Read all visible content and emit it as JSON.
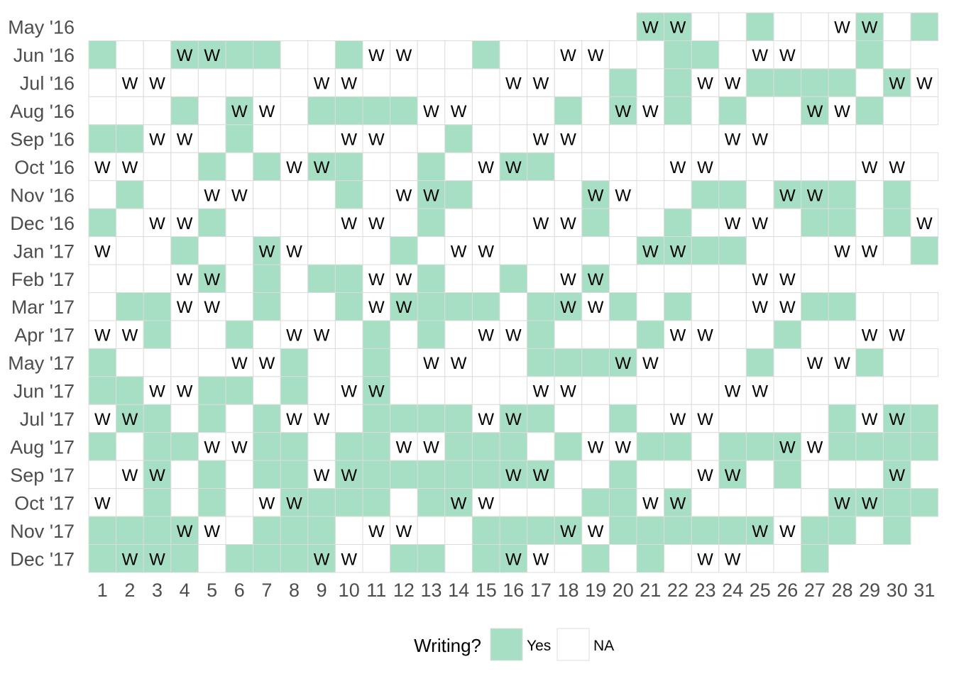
{
  "chart_data": {
    "type": "heatmap",
    "title": "",
    "xlabel": "",
    "ylabel": "",
    "months": [
      "May '16",
      "Jun '16",
      "Jul '16",
      "Aug '16",
      "Sep '16",
      "Oct '16",
      "Nov '16",
      "Dec '16",
      "Jan '17",
      "Feb '17",
      "Mar '17",
      "Apr '17",
      "May '17",
      "Jun '17",
      "Jul '17",
      "Aug '17",
      "Sep '17",
      "Oct '17",
      "Nov '17",
      "Dec '17"
    ],
    "days": [
      "1",
      "2",
      "3",
      "4",
      "5",
      "6",
      "7",
      "8",
      "9",
      "10",
      "11",
      "12",
      "13",
      "14",
      "15",
      "16",
      "17",
      "18",
      "19",
      "20",
      "21",
      "22",
      "23",
      "24",
      "25",
      "26",
      "27",
      "28",
      "29",
      "30",
      "31"
    ],
    "days_in_month": [
      31,
      30,
      31,
      31,
      30,
      31,
      30,
      31,
      31,
      28,
      31,
      30,
      31,
      30,
      31,
      31,
      30,
      31,
      30,
      31
    ],
    "first_day": [
      21,
      1,
      1,
      1,
      1,
      1,
      1,
      1,
      1,
      1,
      1,
      1,
      1,
      1,
      1,
      1,
      1,
      1,
      1,
      1
    ],
    "last_day": [
      31,
      30,
      31,
      31,
      30,
      31,
      30,
      31,
      31,
      28,
      31,
      30,
      31,
      30,
      31,
      31,
      30,
      31,
      30,
      27
    ],
    "writing_days": [
      [
        21,
        22,
        25,
        29,
        31
      ],
      [
        1,
        4,
        5,
        6,
        7,
        10,
        15,
        22,
        23,
        29
      ],
      [
        20,
        22,
        25,
        26,
        27,
        28,
        30
      ],
      [
        4,
        6,
        9,
        10,
        11,
        12,
        18,
        20,
        22,
        24,
        27,
        29
      ],
      [
        1,
        2,
        6,
        14
      ],
      [
        5,
        7,
        9,
        10,
        13,
        16,
        17
      ],
      [
        2,
        10,
        13,
        14,
        19,
        23,
        24,
        26,
        27,
        28,
        30
      ],
      [
        1,
        5,
        13,
        19,
        22,
        27,
        28,
        30
      ],
      [
        4,
        7,
        12,
        21,
        22,
        23,
        24,
        31
      ],
      [
        5,
        7,
        9,
        10,
        13,
        16,
        19
      ],
      [
        2,
        3,
        7,
        10,
        12,
        13,
        14,
        15,
        17,
        18,
        20,
        22,
        27,
        28
      ],
      [
        3,
        6,
        11,
        13,
        17,
        21,
        26
      ],
      [
        1,
        8,
        11,
        17,
        18,
        19,
        20,
        25,
        29
      ],
      [
        1,
        2,
        5,
        6,
        8,
        11
      ],
      [
        2,
        3,
        5,
        7,
        11,
        12,
        13,
        14,
        16,
        17,
        20,
        28,
        30,
        31
      ],
      [
        1,
        3,
        4,
        7,
        8,
        10,
        11,
        14,
        15,
        16,
        18,
        21,
        22,
        24,
        25,
        26,
        28,
        29,
        30,
        31
      ],
      [
        3,
        5,
        7,
        8,
        10,
        11,
        12,
        13,
        14,
        15,
        16,
        17,
        20,
        24,
        26,
        30
      ],
      [
        3,
        5,
        8,
        9,
        10,
        11,
        13,
        14,
        19,
        20,
        22,
        28,
        29,
        30,
        31
      ],
      [
        1,
        2,
        3,
        4,
        7,
        8,
        9,
        15,
        16,
        17,
        18,
        20,
        21,
        22,
        23,
        24,
        25,
        27,
        28,
        30
      ],
      [
        1,
        2,
        3,
        4,
        6,
        7,
        8,
        9,
        12,
        13,
        15,
        16,
        19,
        21,
        27
      ]
    ],
    "weekend_label": "W",
    "weekend_days": [
      [
        21,
        22,
        28,
        29
      ],
      [
        4,
        5,
        11,
        12,
        18,
        19,
        25,
        26
      ],
      [
        2,
        3,
        9,
        10,
        16,
        17,
        23,
        24,
        30,
        31
      ],
      [
        6,
        7,
        13,
        14,
        20,
        21,
        27,
        28
      ],
      [
        3,
        4,
        10,
        11,
        17,
        18,
        24,
        25
      ],
      [
        1,
        2,
        8,
        9,
        15,
        16,
        22,
        23,
        29,
        30
      ],
      [
        5,
        6,
        12,
        13,
        19,
        20,
        26,
        27
      ],
      [
        3,
        4,
        10,
        11,
        17,
        18,
        24,
        25,
        31
      ],
      [
        1,
        7,
        8,
        14,
        15,
        21,
        22,
        28,
        29
      ],
      [
        4,
        5,
        11,
        12,
        18,
        19,
        25,
        26
      ],
      [
        4,
        5,
        11,
        12,
        18,
        19,
        25,
        26
      ],
      [
        1,
        2,
        8,
        9,
        15,
        16,
        22,
        23,
        29,
        30
      ],
      [
        6,
        7,
        13,
        14,
        20,
        21,
        27,
        28
      ],
      [
        3,
        4,
        10,
        11,
        17,
        18,
        24,
        25
      ],
      [
        1,
        2,
        8,
        9,
        15,
        16,
        22,
        23,
        29,
        30
      ],
      [
        5,
        6,
        12,
        13,
        19,
        20,
        26,
        27
      ],
      [
        2,
        3,
        9,
        10,
        16,
        17,
        23,
        24,
        30
      ],
      [
        1,
        7,
        8,
        14,
        15,
        21,
        22,
        28,
        29
      ],
      [
        4,
        5,
        11,
        12,
        18,
        19,
        25,
        26
      ],
      [
        2,
        3,
        9,
        10,
        16,
        17,
        23,
        24
      ]
    ],
    "legend": {
      "title": "Writing?",
      "entries": [
        {
          "label": "Yes",
          "color": "#a6dfc3"
        },
        {
          "label": "NA",
          "color": "#ffffff"
        }
      ]
    },
    "colors": {
      "writing": "#a6dfc3",
      "empty": "#ffffff",
      "tile_border": "#dcdcdc"
    }
  }
}
